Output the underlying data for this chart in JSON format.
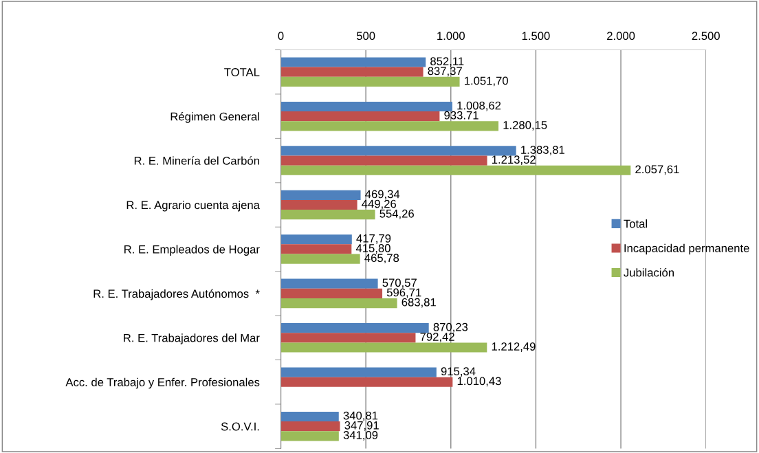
{
  "chart_data": {
    "type": "bar",
    "orientation": "horizontal",
    "categories": [
      "TOTAL",
      "Régimen General",
      "R. E. Minería del Carbón",
      "R. E. Agrario cuenta ajena",
      "R. E. Empleados de Hogar",
      "R. E. Trabajadores Autónomos  *",
      "R. E. Trabajadores del Mar",
      "Acc. de Trabajo y Enfer. Profesionales",
      "S.O.V.I."
    ],
    "series": [
      {
        "name": "Total",
        "color": "#4f81bd",
        "values": [
          852.11,
          1008.62,
          1383.81,
          469.34,
          417.79,
          570.57,
          870.23,
          915.34,
          340.81
        ],
        "value_labels": [
          "852,11",
          "1.008,62",
          "1.383,81",
          "469,34",
          "417,79",
          "570,57",
          "870,23",
          "915,34",
          "340,81"
        ]
      },
      {
        "name": "Incapacidad permanente",
        "color": "#c0504d",
        "values": [
          837.37,
          933.71,
          1213.52,
          449.26,
          415.8,
          596.71,
          792.42,
          1010.43,
          347.91
        ],
        "value_labels": [
          "837,37",
          "933.71",
          "1.213,52",
          "449,26",
          "415,80",
          "596,71",
          "792,42",
          "1.010,43",
          "347,91"
        ]
      },
      {
        "name": "Jubilación",
        "color": "#9bbb59",
        "values": [
          1051.7,
          1280.15,
          2057.61,
          554.26,
          465.78,
          683.81,
          1212.49,
          null,
          341.09
        ],
        "value_labels": [
          "1.051,70",
          "1.280,15",
          "2.057,61",
          "554,26",
          "465,78",
          "683,81",
          "1.212,49",
          null,
          "341,09"
        ]
      }
    ],
    "xlim": [
      0,
      2500
    ],
    "xticks": [
      0,
      500,
      {
        "value": 1000,
        "label": "1.000"
      },
      {
        "value": 1500,
        "label": "1.500"
      },
      {
        "value": 2000,
        "label": "2.000"
      },
      {
        "value": 2500,
        "label": "2.500"
      }
    ],
    "grid": "x",
    "legend": "right"
  }
}
